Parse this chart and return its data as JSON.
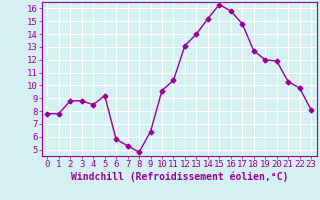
{
  "x": [
    0,
    1,
    2,
    3,
    4,
    5,
    6,
    7,
    8,
    9,
    10,
    11,
    12,
    13,
    14,
    15,
    16,
    17,
    18,
    19,
    20,
    21,
    22,
    23
  ],
  "y": [
    7.8,
    7.8,
    8.8,
    8.8,
    8.5,
    9.2,
    5.8,
    5.3,
    4.8,
    6.4,
    9.6,
    10.4,
    13.1,
    14.0,
    15.2,
    16.3,
    15.8,
    14.8,
    12.7,
    12.0,
    11.9,
    10.3,
    9.8,
    8.1
  ],
  "line_color": "#990099",
  "marker": "D",
  "marker_size": 2.5,
  "background_color": "#d4f0f0",
  "grid_color": "#ffffff",
  "tick_label_color": "#990099",
  "xlabel": "Windchill (Refroidissement éolien,°C)",
  "xlabel_color": "#990099",
  "xlim": [
    -0.5,
    23.5
  ],
  "ylim": [
    4.5,
    16.5
  ],
  "yticks": [
    5,
    6,
    7,
    8,
    9,
    10,
    11,
    12,
    13,
    14,
    15,
    16
  ],
  "xticks": [
    0,
    1,
    2,
    3,
    4,
    5,
    6,
    7,
    8,
    9,
    10,
    11,
    12,
    13,
    14,
    15,
    16,
    17,
    18,
    19,
    20,
    21,
    22,
    23
  ],
  "tick_fontsize": 6.5,
  "xlabel_fontsize": 7.0,
  "line_width": 1.0
}
